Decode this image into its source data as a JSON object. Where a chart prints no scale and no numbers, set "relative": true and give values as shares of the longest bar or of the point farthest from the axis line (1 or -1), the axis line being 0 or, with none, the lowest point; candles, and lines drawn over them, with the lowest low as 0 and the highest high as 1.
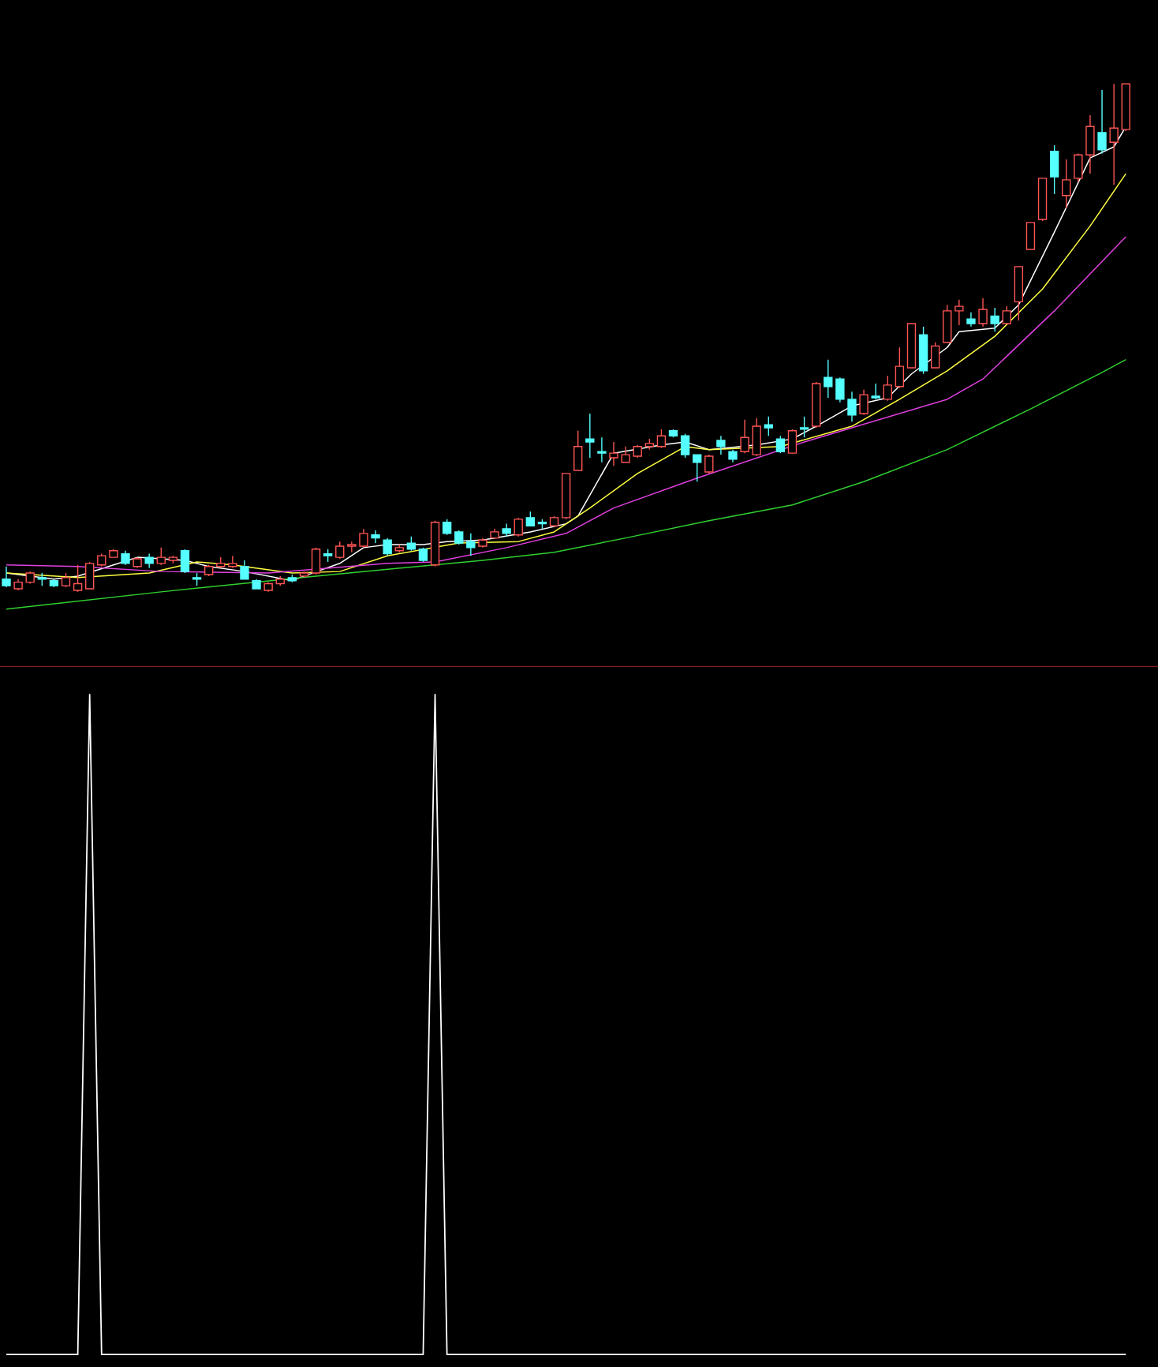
{
  "chart_data": [
    {
      "type": "candlestick",
      "relative": true,
      "categories": [
        null,
        null,
        null,
        null,
        null,
        null,
        null,
        null,
        null,
        null,
        null,
        null,
        null,
        null,
        null,
        null,
        null,
        null,
        null,
        null,
        null,
        null,
        null,
        null,
        null,
        null,
        null,
        null,
        null,
        null,
        null,
        null,
        null,
        null,
        null,
        null,
        null,
        null,
        null,
        null,
        null,
        null,
        null,
        null,
        null,
        null,
        null,
        null,
        null,
        null,
        null,
        null,
        null,
        null,
        null,
        null,
        null,
        null,
        null,
        null,
        null,
        null,
        null,
        null,
        null,
        null,
        null,
        null,
        null,
        null,
        null,
        null,
        null,
        null,
        null,
        null,
        null,
        null,
        null,
        null,
        null,
        null,
        null,
        null,
        null,
        null,
        null,
        null,
        null,
        null,
        null,
        null,
        null,
        null,
        null
      ],
      "ohlc": [
        [
          0.025,
          0.05,
          0.009,
          0.012
        ],
        [
          0.006,
          0.025,
          0.003,
          0.019
        ],
        [
          0.019,
          0.04,
          0.016,
          0.037
        ],
        [
          0.028,
          0.037,
          0.012,
          0.025
        ],
        [
          0.022,
          0.025,
          0.009,
          0.012
        ],
        [
          0.012,
          0.037,
          0.009,
          0.028
        ],
        [
          0.003,
          0.053,
          0,
          0.016
        ],
        [
          0.006,
          0.059,
          0.006,
          0.056
        ],
        [
          0.053,
          0.075,
          0.05,
          0.071
        ],
        [
          0.068,
          0.084,
          0.068,
          0.081
        ],
        [
          0.075,
          0.081,
          0.053,
          0.056
        ],
        [
          0.05,
          0.068,
          0.047,
          0.065
        ],
        [
          0.068,
          0.075,
          0.047,
          0.056
        ],
        [
          0.056,
          0.087,
          0.053,
          0.068
        ],
        [
          0.062,
          0.071,
          0.056,
          0.068
        ],
        [
          0.081,
          0.084,
          0.037,
          0.04
        ],
        [
          0.028,
          0.037,
          0.012,
          0.025
        ],
        [
          0.034,
          0.053,
          0.031,
          0.05
        ],
        [
          0.05,
          0.068,
          0.047,
          0.056
        ],
        [
          0.05,
          0.071,
          0.047,
          0.056
        ],
        [
          0.05,
          0.062,
          0.025,
          0.025
        ],
        [
          0.022,
          0.025,
          0.006,
          0.006
        ],
        [
          0.003,
          0.019,
          0,
          0.016
        ],
        [
          0.016,
          0.031,
          0.012,
          0.025
        ],
        [
          0.028,
          0.034,
          0.019,
          0.022
        ],
        [
          0.031,
          0.04,
          0.028,
          0.037
        ],
        [
          0.037,
          0.087,
          0.034,
          0.084
        ],
        [
          0.075,
          0.084,
          0.059,
          0.071
        ],
        [
          0.068,
          0.099,
          0.065,
          0.09
        ],
        [
          0.09,
          0.099,
          0.078,
          0.093
        ],
        [
          0.09,
          0.124,
          0.087,
          0.115
        ],
        [
          0.112,
          0.121,
          0.096,
          0.106
        ],
        [
          0.102,
          0.106,
          0.071,
          0.075
        ],
        [
          0.081,
          0.093,
          0.078,
          0.087
        ],
        [
          0.096,
          0.109,
          0.081,
          0.084
        ],
        [
          0.084,
          0.087,
          0.059,
          0.062
        ],
        [
          0.053,
          0.14,
          0.05,
          0.137
        ],
        [
          0.137,
          0.143,
          0.112,
          0.115
        ],
        [
          0.118,
          0.121,
          0.093,
          0.096
        ],
        [
          0.099,
          0.115,
          0.071,
          0.087
        ],
        [
          0.09,
          0.106,
          0.087,
          0.102
        ],
        [
          0.106,
          0.124,
          0.106,
          0.118
        ],
        [
          0.124,
          0.134,
          0.109,
          0.115
        ],
        [
          0.112,
          0.146,
          0.109,
          0.143
        ],
        [
          0.146,
          0.158,
          0.13,
          0.13
        ],
        [
          0.137,
          0.143,
          0.124,
          0.134
        ],
        [
          0.13,
          0.149,
          0.127,
          0.146
        ],
        [
          0.146,
          0.233,
          0.143,
          0.233
        ],
        [
          0.239,
          0.317,
          0.239,
          0.286
        ],
        [
          0.301,
          0.351,
          0.264,
          0.295
        ],
        [
          0.276,
          0.304,
          0.255,
          0.273
        ],
        [
          0.264,
          0.295,
          0.248,
          0.273
        ],
        [
          0.255,
          0.286,
          0.255,
          0.27
        ],
        [
          0.267,
          0.289,
          0.264,
          0.286
        ],
        [
          0.286,
          0.301,
          0.28,
          0.292
        ],
        [
          0.286,
          0.32,
          0.283,
          0.307
        ],
        [
          0.317,
          0.32,
          0.304,
          0.307
        ],
        [
          0.307,
          0.311,
          0.264,
          0.27
        ],
        [
          0.27,
          0.27,
          0.217,
          0.255
        ],
        [
          0.236,
          0.27,
          0.233,
          0.267
        ],
        [
          0.298,
          0.307,
          0.27,
          0.286
        ],
        [
          0.276,
          0.28,
          0.255,
          0.261
        ],
        [
          0.276,
          0.339,
          0.273,
          0.304
        ],
        [
          0.27,
          0.342,
          0.267,
          0.326
        ],
        [
          0.329,
          0.345,
          0.307,
          0.323
        ],
        [
          0.301,
          0.307,
          0.273,
          0.276
        ],
        [
          0.273,
          0.32,
          0.273,
          0.317
        ],
        [
          0.323,
          0.345,
          0.304,
          0.32
        ],
        [
          0.326,
          0.413,
          0.323,
          0.41
        ],
        [
          0.422,
          0.457,
          0.382,
          0.404
        ],
        [
          0.419,
          0.422,
          0.373,
          0.379
        ],
        [
          0.379,
          0.394,
          0.335,
          0.348
        ],
        [
          0.351,
          0.398,
          0.348,
          0.388
        ],
        [
          0.385,
          0.41,
          0.379,
          0.382
        ],
        [
          0.379,
          0.425,
          0.376,
          0.407
        ],
        [
          0.404,
          0.481,
          0.401,
          0.444
        ],
        [
          0.441,
          0.528,
          0.441,
          0.528
        ],
        [
          0.506,
          0.522,
          0.429,
          0.435
        ],
        [
          0.441,
          0.491,
          0.441,
          0.484
        ],
        [
          0.491,
          0.565,
          0.491,
          0.553
        ],
        [
          0.553,
          0.575,
          0.525,
          0.562
        ],
        [
          0.537,
          0.55,
          0.522,
          0.528
        ],
        [
          0.528,
          0.578,
          0.522,
          0.556
        ],
        [
          0.543,
          0.559,
          0.512,
          0.528
        ],
        [
          0.528,
          0.562,
          0.528,
          0.553
        ],
        [
          0.571,
          0.64,
          0.534,
          0.64
        ],
        [
          0.674,
          0.727,
          0.674,
          0.727
        ],
        [
          0.733,
          0.814,
          0.73,
          0.814
        ],
        [
          0.867,
          0.879,
          0.783,
          0.817
        ],
        [
          0.78,
          0.851,
          0.755,
          0.811
        ],
        [
          0.814,
          0.863,
          0.807,
          0.86
        ],
        [
          0.86,
          0.938,
          0.823,
          0.916
        ],
        [
          0.904,
          0.988,
          0.863,
          0.87
        ],
        [
          0.885,
          1,
          0.801,
          0.913
        ],
        [
          0.91,
          1,
          0.907,
          1
        ]
      ],
      "colors": [
        "#55ffff",
        "#ff5555",
        "#ff5555",
        "#55ffff",
        "#55ffff",
        "#ff5555",
        "#ff5555",
        "#ff5555",
        "#ff5555",
        "#ff5555",
        "#55ffff",
        "#ff5555",
        "#55ffff",
        "#ff5555",
        "#ff5555",
        "#55ffff",
        "#55ffff",
        "#ff5555",
        "#ff5555",
        "#ff5555",
        "#55ffff",
        "#55ffff",
        "#ff5555",
        "#ff5555",
        "#55ffff",
        "#ff5555",
        "#ff5555",
        "#55ffff",
        "#ff5555",
        "#ff5555",
        "#ff5555",
        "#55ffff",
        "#55ffff",
        "#ff5555",
        "#55ffff",
        "#55ffff",
        "#ff5555",
        "#55ffff",
        "#55ffff",
        "#55ffff",
        "#ff5555",
        "#ff5555",
        "#55ffff",
        "#ff5555",
        "#55ffff",
        "#55ffff",
        "#ff5555",
        "#ff5555",
        "#ff5555",
        "#55ffff",
        "#55ffff",
        "#ff5555",
        "#ff5555",
        "#ff5555",
        "#ff5555",
        "#ff5555",
        "#55ffff",
        "#55ffff",
        "#55ffff",
        "#ff5555",
        "#55ffff",
        "#55ffff",
        "#ff5555",
        "#ff5555",
        "#55ffff",
        "#55ffff",
        "#ff5555",
        "#55ffff",
        "#ff5555",
        "#55ffff",
        "#55ffff",
        "#55ffff",
        "#ff5555",
        "#55ffff",
        "#ff5555",
        "#ff5555",
        "#ff5555",
        "#55ffff",
        "#ff5555",
        "#ff5555",
        "#ff5555",
        "#55ffff",
        "#ff5555",
        "#55ffff",
        "#ff5555",
        "#ff5555",
        "#ff5555",
        "#ff5555",
        "#55ffff",
        "#ff5555",
        "#ff5555",
        "#ff5555",
        "#55ffff",
        "#ff5555",
        "#ff5555"
      ],
      "series": [
        {
          "type": "line",
          "color": "#ffffff",
          "values": [
            0.037,
            null,
            null,
            null,
            0.025,
            null,
            0.031,
            null,
            null,
            0.053,
            null,
            0.068,
            null,
            null,
            null,
            0.062,
            null,
            0.05,
            null,
            null,
            0.04,
            null,
            null,
            null,
            0.022,
            0.031,
            null,
            null,
            0.056,
            null,
            0.087,
            null,
            0.093,
            0.093,
            null,
            0.093,
            null,
            0.099,
            null,
            null,
            0.102,
            null,
            null,
            null,
            0.118,
            null,
            null,
            0.134,
            0.149,
            null,
            null,
            0.273,
            null,
            null,
            null,
            0.289,
            null,
            0.295,
            null,
            0.28,
            null,
            null,
            null,
            0.289,
            null,
            null,
            0.301,
            null,
            0.326,
            null,
            null,
            0.366,
            null,
            null,
            0.382,
            null,
            0.429,
            null,
            null,
            0.481,
            0.512,
            null,
            null,
            0.519,
            null,
            0.565,
            null,
            null,
            0.708,
            null,
            null,
            0.854,
            null,
            0.876,
            0.916
          ]
        },
        {
          "type": "line",
          "color": "#ffff40",
          "values": [
            0.037,
            null,
            null,
            null,
            null,
            null,
            0.028,
            null,
            null,
            null,
            null,
            null,
            0.037,
            null,
            null,
            null,
            0.059,
            null,
            null,
            0.053,
            null,
            null,
            null,
            null,
            0.037,
            null,
            null,
            null,
            0.04,
            null,
            null,
            null,
            0.071,
            null,
            null,
            null,
            null,
            null,
            0.096,
            null,
            null,
            null,
            null,
            0.099,
            null,
            null,
            0.118,
            null,
            null,
            0.165,
            null,
            null,
            null,
            0.233,
            null,
            null,
            null,
            0.286,
            null,
            0.28,
            null,
            null,
            null,
            null,
            null,
            0.286,
            null,
            null,
            null,
            null,
            null,
            0.326,
            null,
            null,
            null,
            0.379,
            null,
            null,
            null,
            0.435,
            null,
            null,
            null,
            0.503,
            null,
            null,
            null,
            0.596,
            null,
            null,
            null,
            0.72,
            null,
            null,
            0.823
          ]
        },
        {
          "type": "line",
          "color": "#e040e0",
          "values": [
            0.053,
            null,
            null,
            null,
            null,
            null,
            0.05,
            null,
            null,
            null,
            null,
            null,
            null,
            0.04,
            null,
            null,
            null,
            null,
            null,
            null,
            null,
            null,
            0.037,
            null,
            null,
            null,
            null,
            null,
            null,
            null,
            null,
            null,
            0.056,
            null,
            null,
            null,
            0.059,
            null,
            null,
            null,
            null,
            null,
            0.087,
            null,
            null,
            null,
            null,
            0.115,
            null,
            null,
            null,
            0.165,
            null,
            null,
            null,
            null,
            null,
            null,
            0.224,
            null,
            null,
            null,
            null,
            null,
            null,
            null,
            null,
            0.295,
            null,
            null,
            null,
            null,
            null,
            null,
            null,
            null,
            null,
            null,
            null,
            0.379,
            null,
            null,
            0.419,
            null,
            null,
            null,
            null,
            null,
            0.553,
            null,
            null,
            null,
            null,
            null,
            0.699
          ]
        },
        {
          "type": "line",
          "color": "#30d030",
          "values": [
            -0.034,
            null,
            null,
            null,
            null,
            null,
            null,
            null,
            null,
            null,
            null,
            null,
            null,
            0,
            null,
            null,
            null,
            null,
            null,
            null,
            null,
            null,
            null,
            null,
            null,
            null,
            0.031,
            null,
            null,
            null,
            null,
            null,
            null,
            null,
            null,
            null,
            null,
            null,
            null,
            null,
            0.062,
            null,
            null,
            null,
            null,
            null,
            0.078,
            null,
            null,
            null,
            null,
            null,
            0.106,
            null,
            null,
            null,
            null,
            null,
            null,
            0.14,
            null,
            null,
            null,
            null,
            null,
            null,
            0.171,
            null,
            null,
            null,
            null,
            null,
            0.217,
            null,
            null,
            null,
            null,
            null,
            null,
            0.28,
            null,
            null,
            null,
            null,
            null,
            null,
            0.36,
            null,
            null,
            null,
            null,
            null,
            0.432,
            null,
            0.457
          ]
        }
      ]
    },
    {
      "type": "line",
      "relative": true,
      "color": "#ffffff",
      "categories": [
        null,
        null,
        null,
        null,
        null,
        null,
        null,
        null,
        null,
        null,
        null,
        null,
        null,
        null,
        null,
        null,
        null,
        null,
        null,
        null,
        null,
        null,
        null,
        null,
        null,
        null,
        null,
        null,
        null,
        null,
        null,
        null,
        null,
        null,
        null,
        null,
        null,
        null,
        null,
        null,
        null,
        null,
        null,
        null,
        null,
        null,
        null,
        null,
        null,
        null,
        null,
        null,
        null,
        null,
        null,
        null,
        null,
        null,
        null,
        null,
        null,
        null,
        null,
        null,
        null,
        null,
        null,
        null,
        null,
        null,
        null,
        null,
        null,
        null,
        null,
        null,
        null,
        null,
        null,
        null,
        null,
        null,
        null,
        null,
        null,
        null,
        null,
        null,
        null,
        null,
        null,
        null,
        null,
        null,
        null
      ],
      "values": [
        0,
        0,
        0,
        0,
        0,
        0,
        0,
        1,
        0,
        0,
        0,
        0,
        0,
        0,
        0,
        0,
        0,
        0,
        0,
        0,
        0,
        0,
        0,
        0,
        0,
        0,
        0,
        0,
        0,
        0,
        0,
        0,
        0,
        0,
        0,
        0,
        1,
        0,
        0,
        0,
        0,
        0,
        0,
        0,
        0,
        0,
        0,
        0,
        0,
        0,
        0,
        0,
        0,
        0,
        0,
        0,
        0,
        0,
        0,
        0,
        0,
        0,
        0,
        0,
        0,
        0,
        0,
        0,
        0,
        0,
        0,
        0,
        0,
        0,
        0,
        0,
        0,
        0,
        0,
        0,
        0,
        0,
        0,
        0,
        0,
        0,
        0,
        0,
        0,
        0,
        0,
        0,
        0,
        0,
        0
      ]
    }
  ]
}
